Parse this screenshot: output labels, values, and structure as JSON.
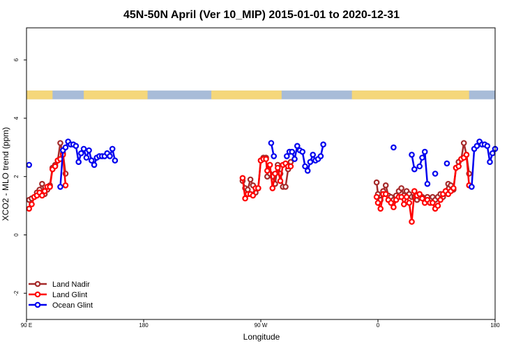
{
  "chart_data": {
    "type": "line",
    "title": "45N-50N April (Ver 10_MIP)   2015-01-01 to 2020-12-31",
    "xlabel": "Longitude",
    "ylabel": "XCO2 - MLO trend (ppm)",
    "xlim": [
      90,
      450
    ],
    "ylim": [
      -2.9,
      7.1
    ],
    "x_ticks": [
      {
        "value": 90,
        "label": "90 E"
      },
      {
        "value": 180,
        "label": "180"
      },
      {
        "value": 270,
        "label": "90 W"
      },
      {
        "value": 360,
        "label": "0"
      },
      {
        "value": 450,
        "label": "180"
      }
    ],
    "y_ticks": [
      {
        "value": -2,
        "label": "-2"
      },
      {
        "value": 0,
        "label": "0"
      },
      {
        "value": 2,
        "label": "2"
      },
      {
        "value": 4,
        "label": "4"
      },
      {
        "value": 6,
        "label": "6"
      }
    ],
    "y_tick_labels_rotated": true,
    "grid": false,
    "land_sea_band": {
      "y_from": 4.65,
      "y_to": 4.95,
      "land_color": "#f5d77a",
      "sea_color": "#a8bcd8"
    },
    "legend": {
      "position": "bottom-left"
    },
    "series": [
      {
        "name": "Land Nadir",
        "color": "#a52a2a",
        "points": [
          [
            92,
            1.2
          ],
          [
            94,
            1.25
          ],
          [
            96,
            1.3
          ],
          [
            98,
            1.45
          ],
          [
            100,
            1.55
          ],
          [
            102,
            1.75
          ],
          [
            104,
            1.4
          ],
          [
            106,
            1.55
          ],
          [
            108,
            1.7
          ],
          [
            110,
            2.3
          ],
          [
            112,
            2.4
          ],
          [
            114,
            2.55
          ],
          [
            116,
            3.15
          ],
          [
            118,
            2.8
          ],
          [
            120,
            2.1
          ],
          null,
          [
            256,
            1.85
          ],
          [
            258,
            1.6
          ],
          [
            260,
            1.55
          ],
          [
            262,
            1.9
          ],
          [
            264,
            1.7
          ],
          [
            266,
            1.45
          ],
          [
            268,
            1.6
          ],
          [
            270,
            2.55
          ],
          [
            272,
            2.65
          ],
          [
            274,
            2.65
          ],
          [
            275,
            2.0
          ],
          [
            277,
            2.1
          ],
          [
            279,
            2.0
          ],
          [
            281,
            1.75
          ],
          [
            283,
            2.4
          ],
          [
            285,
            2.1
          ],
          [
            287,
            1.65
          ],
          [
            289,
            1.65
          ],
          [
            291,
            2.25
          ],
          [
            293,
            2.5
          ],
          null,
          [
            359,
            1.8
          ],
          [
            360,
            1.4
          ],
          [
            362,
            1.2
          ],
          [
            364,
            1.5
          ],
          [
            366,
            1.7
          ],
          [
            368,
            1.35
          ],
          [
            370,
            1.3
          ],
          [
            372,
            1.2
          ],
          [
            374,
            1.35
          ],
          [
            376,
            1.5
          ],
          [
            378,
            1.6
          ],
          [
            380,
            1.35
          ],
          [
            382,
            1.5
          ],
          [
            384,
            1.4
          ],
          [
            386,
            1.3
          ],
          [
            388,
            1.3
          ],
          [
            390,
            1.2
          ],
          [
            392,
            1.3
          ],
          [
            394,
            1.3
          ],
          [
            396,
            1.25
          ],
          [
            398,
            1.3
          ],
          [
            400,
            1.2
          ],
          [
            402,
            1.3
          ],
          [
            404,
            1.2
          ],
          [
            406,
            1.3
          ],
          [
            408,
            1.4
          ],
          [
            410,
            1.3
          ],
          [
            412,
            1.5
          ],
          [
            414,
            1.75
          ],
          [
            416,
            1.7
          ],
          [
            418,
            1.55
          ],
          [
            420,
            2.3
          ],
          [
            422,
            2.5
          ],
          [
            424,
            2.6
          ],
          [
            426,
            3.15
          ],
          [
            428,
            2.75
          ],
          [
            430,
            2.1
          ]
        ]
      },
      {
        "name": "Land Glint",
        "color": "#ff0000",
        "points": [
          [
            92,
            0.9
          ],
          [
            94,
            1.05
          ],
          [
            96,
            1.3
          ],
          [
            98,
            1.35
          ],
          [
            100,
            1.45
          ],
          [
            102,
            1.35
          ],
          [
            104,
            1.5
          ],
          [
            106,
            1.65
          ],
          [
            108,
            1.65
          ],
          [
            110,
            2.25
          ],
          [
            112,
            2.35
          ],
          [
            114,
            2.55
          ],
          [
            116,
            2.6
          ],
          [
            118,
            2.75
          ],
          [
            120,
            1.7
          ],
          null,
          [
            256,
            1.95
          ],
          [
            258,
            1.25
          ],
          [
            260,
            1.4
          ],
          [
            262,
            1.4
          ],
          [
            264,
            1.35
          ],
          [
            266,
            1.6
          ],
          [
            268,
            1.6
          ],
          [
            270,
            2.55
          ],
          [
            272,
            2.6
          ],
          [
            274,
            2.6
          ],
          [
            275,
            2.2
          ],
          [
            277,
            2.4
          ],
          [
            279,
            1.6
          ],
          [
            281,
            2.1
          ],
          [
            283,
            2.3
          ],
          [
            285,
            1.85
          ],
          [
            287,
            2.4
          ],
          [
            289,
            2.45
          ],
          [
            291,
            2.35
          ],
          [
            293,
            2.35
          ],
          null,
          [
            359,
            1.3
          ],
          [
            360,
            1.1
          ],
          [
            362,
            0.9
          ],
          [
            364,
            1.4
          ],
          [
            366,
            1.4
          ],
          [
            368,
            1.2
          ],
          [
            370,
            1.1
          ],
          [
            372,
            0.95
          ],
          [
            374,
            1.2
          ],
          [
            376,
            1.3
          ],
          [
            378,
            1.3
          ],
          [
            380,
            1.05
          ],
          [
            382,
            1.3
          ],
          [
            384,
            1.1
          ],
          [
            386,
            0.45
          ],
          [
            388,
            1.5
          ],
          [
            390,
            1.35
          ],
          [
            392,
            1.4
          ],
          [
            394,
            1.25
          ],
          [
            396,
            1.1
          ],
          [
            398,
            1.2
          ],
          [
            400,
            1.1
          ],
          [
            402,
            1.1
          ],
          [
            404,
            0.9
          ],
          [
            406,
            1.0
          ],
          [
            408,
            1.2
          ],
          [
            410,
            1.4
          ],
          [
            412,
            1.5
          ],
          [
            414,
            1.4
          ],
          [
            416,
            1.5
          ],
          [
            418,
            1.6
          ],
          [
            420,
            2.3
          ],
          [
            422,
            2.35
          ],
          [
            424,
            2.6
          ],
          [
            426,
            2.65
          ],
          [
            428,
            2.75
          ],
          [
            430,
            1.7
          ]
        ]
      },
      {
        "name": "Ocean Glint",
        "color": "#0000ee",
        "points": [
          [
            92,
            2.4
          ],
          null,
          [
            116,
            1.65
          ],
          [
            118,
            2.9
          ],
          [
            120,
            3.0
          ],
          [
            122,
            3.2
          ],
          [
            124,
            3.1
          ],
          [
            126,
            3.1
          ],
          [
            128,
            3.05
          ],
          [
            130,
            2.5
          ],
          [
            132,
            2.8
          ],
          [
            134,
            2.95
          ],
          [
            136,
            2.65
          ],
          [
            138,
            2.9
          ],
          [
            140,
            2.55
          ],
          [
            142,
            2.4
          ],
          [
            144,
            2.65
          ],
          [
            146,
            2.7
          ],
          [
            148,
            2.7
          ],
          [
            150,
            2.7
          ],
          [
            152,
            2.8
          ],
          [
            154,
            2.7
          ],
          [
            156,
            2.95
          ],
          [
            158,
            2.55
          ],
          null,
          [
            278,
            3.15
          ],
          [
            280,
            2.7
          ],
          null,
          [
            290,
            2.7
          ],
          [
            292,
            2.85
          ],
          [
            294,
            2.85
          ],
          [
            296,
            2.6
          ],
          [
            298,
            3.05
          ],
          [
            300,
            2.9
          ],
          [
            302,
            2.85
          ],
          [
            304,
            2.35
          ],
          [
            306,
            2.2
          ],
          [
            308,
            2.5
          ],
          [
            310,
            2.75
          ],
          [
            312,
            2.55
          ],
          [
            314,
            2.6
          ],
          [
            316,
            2.7
          ],
          [
            318,
            3.1
          ],
          null,
          [
            372,
            3.0
          ],
          null,
          [
            386,
            2.75
          ],
          [
            388,
            2.25
          ],
          null,
          [
            392,
            2.35
          ],
          [
            394,
            2.65
          ],
          [
            396,
            2.85
          ],
          [
            398,
            1.75
          ],
          null,
          [
            404,
            2.1
          ],
          null,
          [
            413,
            2.45
          ],
          null,
          [
            432,
            1.65
          ],
          [
            434,
            2.95
          ],
          [
            436,
            3.05
          ],
          [
            438,
            3.2
          ],
          [
            440,
            3.1
          ],
          [
            442,
            3.1
          ],
          [
            444,
            3.05
          ],
          [
            446,
            2.5
          ],
          [
            448,
            2.8
          ],
          [
            450,
            2.95
          ]
        ]
      }
    ]
  }
}
